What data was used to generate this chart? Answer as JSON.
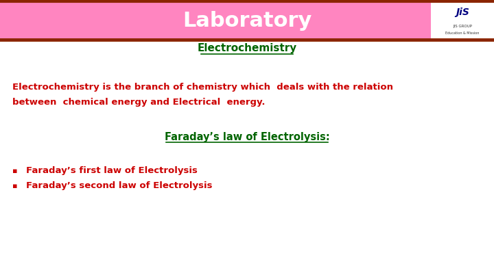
{
  "title": "Laboratory",
  "title_color": "#FFFFFF",
  "header_bar_color": "#FF85C0",
  "header_line_color": "#8B2500",
  "subtitle": "Electrochemistry",
  "subtitle_color": "#006400",
  "body_text_line1": "Electrochemistry is the branch of chemistry which  deals with the relation",
  "body_text_line2": "between  chemical energy and Electrical  energy.",
  "body_text_color": "#CC0000",
  "faraday_heading": "Faraday’s law of Electrolysis:",
  "faraday_heading_color": "#006400",
  "bullet1": "Faraday’s first law of Electrolysis",
  "bullet2": "Faraday’s second law of Electrolysis",
  "bullet_color": "#CC0000",
  "bg_color": "#FFFFFF",
  "fig_width": 7.2,
  "fig_height": 4.05,
  "dpi": 100
}
